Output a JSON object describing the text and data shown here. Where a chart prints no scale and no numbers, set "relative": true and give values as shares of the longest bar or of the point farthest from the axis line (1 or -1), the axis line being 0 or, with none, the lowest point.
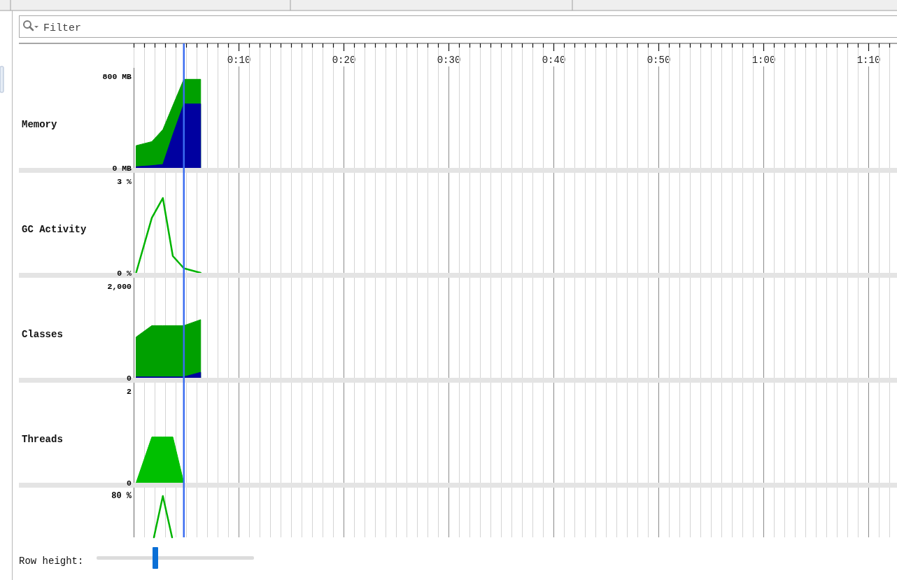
{
  "chart_data": [
    {
      "type": "area",
      "ylabel": "Memory",
      "x": [
        0.2,
        1.7,
        2.75,
        3.7,
        4.75,
        6.35
      ],
      "series": [
        {
          "color": "#00a000",
          "values": [
            195,
            230,
            335,
            545,
            775,
            775
          ]
        },
        {
          "color": "#0000a0",
          "values": [
            10,
            20,
            30,
            290,
            560,
            560
          ]
        }
      ],
      "xlim": [
        0,
        72.7
      ],
      "xticks": [
        {
          "value": 0,
          "label": null
        },
        {
          "value": 1,
          "label": null
        },
        {
          "value": 2,
          "label": null
        },
        {
          "value": 3,
          "label": null
        },
        {
          "value": 4,
          "label": null
        },
        {
          "value": 5,
          "label": null
        },
        {
          "value": 6,
          "label": null
        },
        {
          "value": 7,
          "label": null
        },
        {
          "value": 8,
          "label": null
        },
        {
          "value": 9,
          "label": null
        },
        {
          "value": 10,
          "label": "0:10"
        },
        {
          "value": 11,
          "label": null
        },
        {
          "value": 12,
          "label": null
        },
        {
          "value": 13,
          "label": null
        },
        {
          "value": 14,
          "label": null
        },
        {
          "value": 15,
          "label": null
        },
        {
          "value": 16,
          "label": null
        },
        {
          "value": 17,
          "label": null
        },
        {
          "value": 18,
          "label": null
        },
        {
          "value": 19,
          "label": null
        },
        {
          "value": 20,
          "label": "0:20"
        },
        {
          "value": 21,
          "label": null
        },
        {
          "value": 22,
          "label": null
        },
        {
          "value": 23,
          "label": null
        },
        {
          "value": 24,
          "label": null
        },
        {
          "value": 25,
          "label": null
        },
        {
          "value": 26,
          "label": null
        },
        {
          "value": 27,
          "label": null
        },
        {
          "value": 28,
          "label": null
        },
        {
          "value": 29,
          "label": null
        },
        {
          "value": 30,
          "label": "0:30"
        },
        {
          "value": 31,
          "label": null
        },
        {
          "value": 32,
          "label": null
        },
        {
          "value": 33,
          "label": null
        },
        {
          "value": 34,
          "label": null
        },
        {
          "value": 35,
          "label": null
        },
        {
          "value": 36,
          "label": null
        },
        {
          "value": 37,
          "label": null
        },
        {
          "value": 38,
          "label": null
        },
        {
          "value": 39,
          "label": null
        },
        {
          "value": 40,
          "label": "0:40"
        },
        {
          "value": 41,
          "label": null
        },
        {
          "value": 42,
          "label": null
        },
        {
          "value": 43,
          "label": null
        },
        {
          "value": 44,
          "label": null
        },
        {
          "value": 45,
          "label": null
        },
        {
          "value": 46,
          "label": null
        },
        {
          "value": 47,
          "label": null
        },
        {
          "value": 48,
          "label": null
        },
        {
          "value": 49,
          "label": null
        },
        {
          "value": 50,
          "label": "0:50"
        },
        {
          "value": 51,
          "label": null
        },
        {
          "value": 52,
          "label": null
        },
        {
          "value": 53,
          "label": null
        },
        {
          "value": 54,
          "label": null
        },
        {
          "value": 55,
          "label": null
        },
        {
          "value": 56,
          "label": null
        },
        {
          "value": 57,
          "label": null
        },
        {
          "value": 58,
          "label": null
        },
        {
          "value": 59,
          "label": null
        },
        {
          "value": 60,
          "label": "1:00"
        },
        {
          "value": 61,
          "label": null
        },
        {
          "value": 62,
          "label": null
        },
        {
          "value": 63,
          "label": null
        },
        {
          "value": 64,
          "label": null
        },
        {
          "value": 65,
          "label": null
        },
        {
          "value": 66,
          "label": null
        },
        {
          "value": 67,
          "label": null
        },
        {
          "value": 68,
          "label": null
        },
        {
          "value": 69,
          "label": null
        },
        {
          "value": 70,
          "label": "1:10"
        },
        {
          "value": 71,
          "label": null
        },
        {
          "value": 72,
          "label": null
        }
      ],
      "ylim": [
        0,
        875
      ],
      "yticks": [
        {
          "value": 0,
          "label": "0 MB"
        },
        {
          "value": 800,
          "label": "800 MB"
        }
      ],
      "grid": "x",
      "ref_lines": [
        {
          "axis": "x",
          "value": 4.75,
          "color": "#3a6cf0"
        }
      ],
      "annotations": [
        "Filter",
        "Row height:"
      ]
    },
    {
      "type": "line",
      "ylabel": "GC Activity",
      "x": [
        0.2,
        1.7,
        2.75,
        3.7,
        4.75,
        6.35
      ],
      "values": [
        0,
        1.8,
        2.45,
        0.55,
        0.15,
        0
      ],
      "color": "#00b400",
      "xlim": [
        0,
        72.7
      ],
      "xticks": [
        0,
        1,
        2,
        3,
        4,
        5,
        6,
        7,
        8,
        9,
        10,
        11,
        12,
        13,
        14,
        15,
        16,
        17,
        18,
        19,
        20,
        21,
        22,
        23,
        24,
        25,
        26,
        27,
        28,
        29,
        30,
        31,
        32,
        33,
        34,
        35,
        36,
        37,
        38,
        39,
        40,
        41,
        42,
        43,
        44,
        45,
        46,
        47,
        48,
        49,
        50,
        51,
        52,
        53,
        54,
        55,
        56,
        57,
        58,
        59,
        60,
        61,
        62,
        63,
        64,
        65,
        66,
        67,
        68,
        69,
        70,
        71,
        72
      ],
      "ylim": [
        0,
        3.275
      ],
      "yticks": [
        {
          "value": 0,
          "label": "0 %"
        },
        {
          "value": 3,
          "label": "3 %"
        }
      ],
      "tick_labels": "y",
      "grid": "x",
      "ref_lines": [
        {
          "axis": "x",
          "value": 4.75,
          "color": "#3a6cf0"
        }
      ]
    },
    {
      "type": "area",
      "ylabel": "Classes",
      "x": [
        0.2,
        1.7,
        2.75,
        3.7,
        4.75,
        6.35
      ],
      "series": [
        {
          "color": "#00a000",
          "values": [
            890,
            1140,
            1140,
            1140,
            1140,
            1270
          ]
        },
        {
          "color": "#0000a0",
          "values": [
            20,
            20,
            20,
            20,
            20,
            120
          ]
        }
      ],
      "xlim": [
        0,
        72.7
      ],
      "xticks": [
        0,
        1,
        2,
        3,
        4,
        5,
        6,
        7,
        8,
        9,
        10,
        11,
        12,
        13,
        14,
        15,
        16,
        17,
        18,
        19,
        20,
        21,
        22,
        23,
        24,
        25,
        26,
        27,
        28,
        29,
        30,
        31,
        32,
        33,
        34,
        35,
        36,
        37,
        38,
        39,
        40,
        41,
        42,
        43,
        44,
        45,
        46,
        47,
        48,
        49,
        50,
        51,
        52,
        53,
        54,
        55,
        56,
        57,
        58,
        59,
        60,
        61,
        62,
        63,
        64,
        65,
        66,
        67,
        68,
        69,
        70,
        71,
        72
      ],
      "ylim": [
        0,
        2185
      ],
      "yticks": [
        {
          "value": 0,
          "label": "0"
        },
        {
          "value": 2000,
          "label": "2,000"
        }
      ],
      "tick_labels": "y",
      "grid": "x",
      "ref_lines": [
        {
          "axis": "x",
          "value": 4.75,
          "color": "#3a6cf0"
        }
      ]
    },
    {
      "type": "area",
      "ylabel": "Threads",
      "x": [
        0.2,
        1.7,
        2.75,
        3.7,
        4.75
      ],
      "values": [
        0,
        1,
        1,
        1,
        0
      ],
      "color": "#00c000",
      "xlim": [
        0,
        72.7
      ],
      "xticks": [
        0,
        1,
        2,
        3,
        4,
        5,
        6,
        7,
        8,
        9,
        10,
        11,
        12,
        13,
        14,
        15,
        16,
        17,
        18,
        19,
        20,
        21,
        22,
        23,
        24,
        25,
        26,
        27,
        28,
        29,
        30,
        31,
        32,
        33,
        34,
        35,
        36,
        37,
        38,
        39,
        40,
        41,
        42,
        43,
        44,
        45,
        46,
        47,
        48,
        49,
        50,
        51,
        52,
        53,
        54,
        55,
        56,
        57,
        58,
        59,
        60,
        61,
        62,
        63,
        64,
        65,
        66,
        67,
        68,
        69,
        70,
        71,
        72
      ],
      "ylim": [
        0,
        2.185
      ],
      "yticks": [
        {
          "value": 0,
          "label": "0"
        },
        {
          "value": 2,
          "label": "2"
        }
      ],
      "tick_labels": "y",
      "grid": "x",
      "ref_lines": [
        {
          "axis": "x",
          "value": 4.75,
          "color": "#3a6cf0"
        }
      ]
    },
    {
      "type": "line",
      "relative": true,
      "x": [
        1.9,
        2.75,
        3.63
      ],
      "values": [
        0,
        1,
        0
      ],
      "color": "#00b400",
      "xlim": [
        0,
        72.7
      ],
      "xticks": [
        0,
        1,
        2,
        3,
        4,
        5,
        6,
        7,
        8,
        9,
        10,
        11,
        12,
        13,
        14,
        15,
        16,
        17,
        18,
        19,
        20,
        21,
        22,
        23,
        24,
        25,
        26,
        27,
        28,
        29,
        30,
        31,
        32,
        33,
        34,
        35,
        36,
        37,
        38,
        39,
        40,
        41,
        42,
        43,
        44,
        45,
        46,
        47,
        48,
        49,
        50,
        51,
        52,
        53,
        54,
        55,
        56,
        57,
        58,
        59,
        60,
        61,
        62,
        63,
        64,
        65,
        66,
        67,
        68,
        69,
        70,
        71,
        72
      ],
      "tick_labels": false,
      "grid": "x",
      "ref_lines": [
        {
          "axis": "x",
          "value": 4.75,
          "color": "#3a6cf0"
        }
      ],
      "annotations": [
        "80 %"
      ]
    }
  ]
}
